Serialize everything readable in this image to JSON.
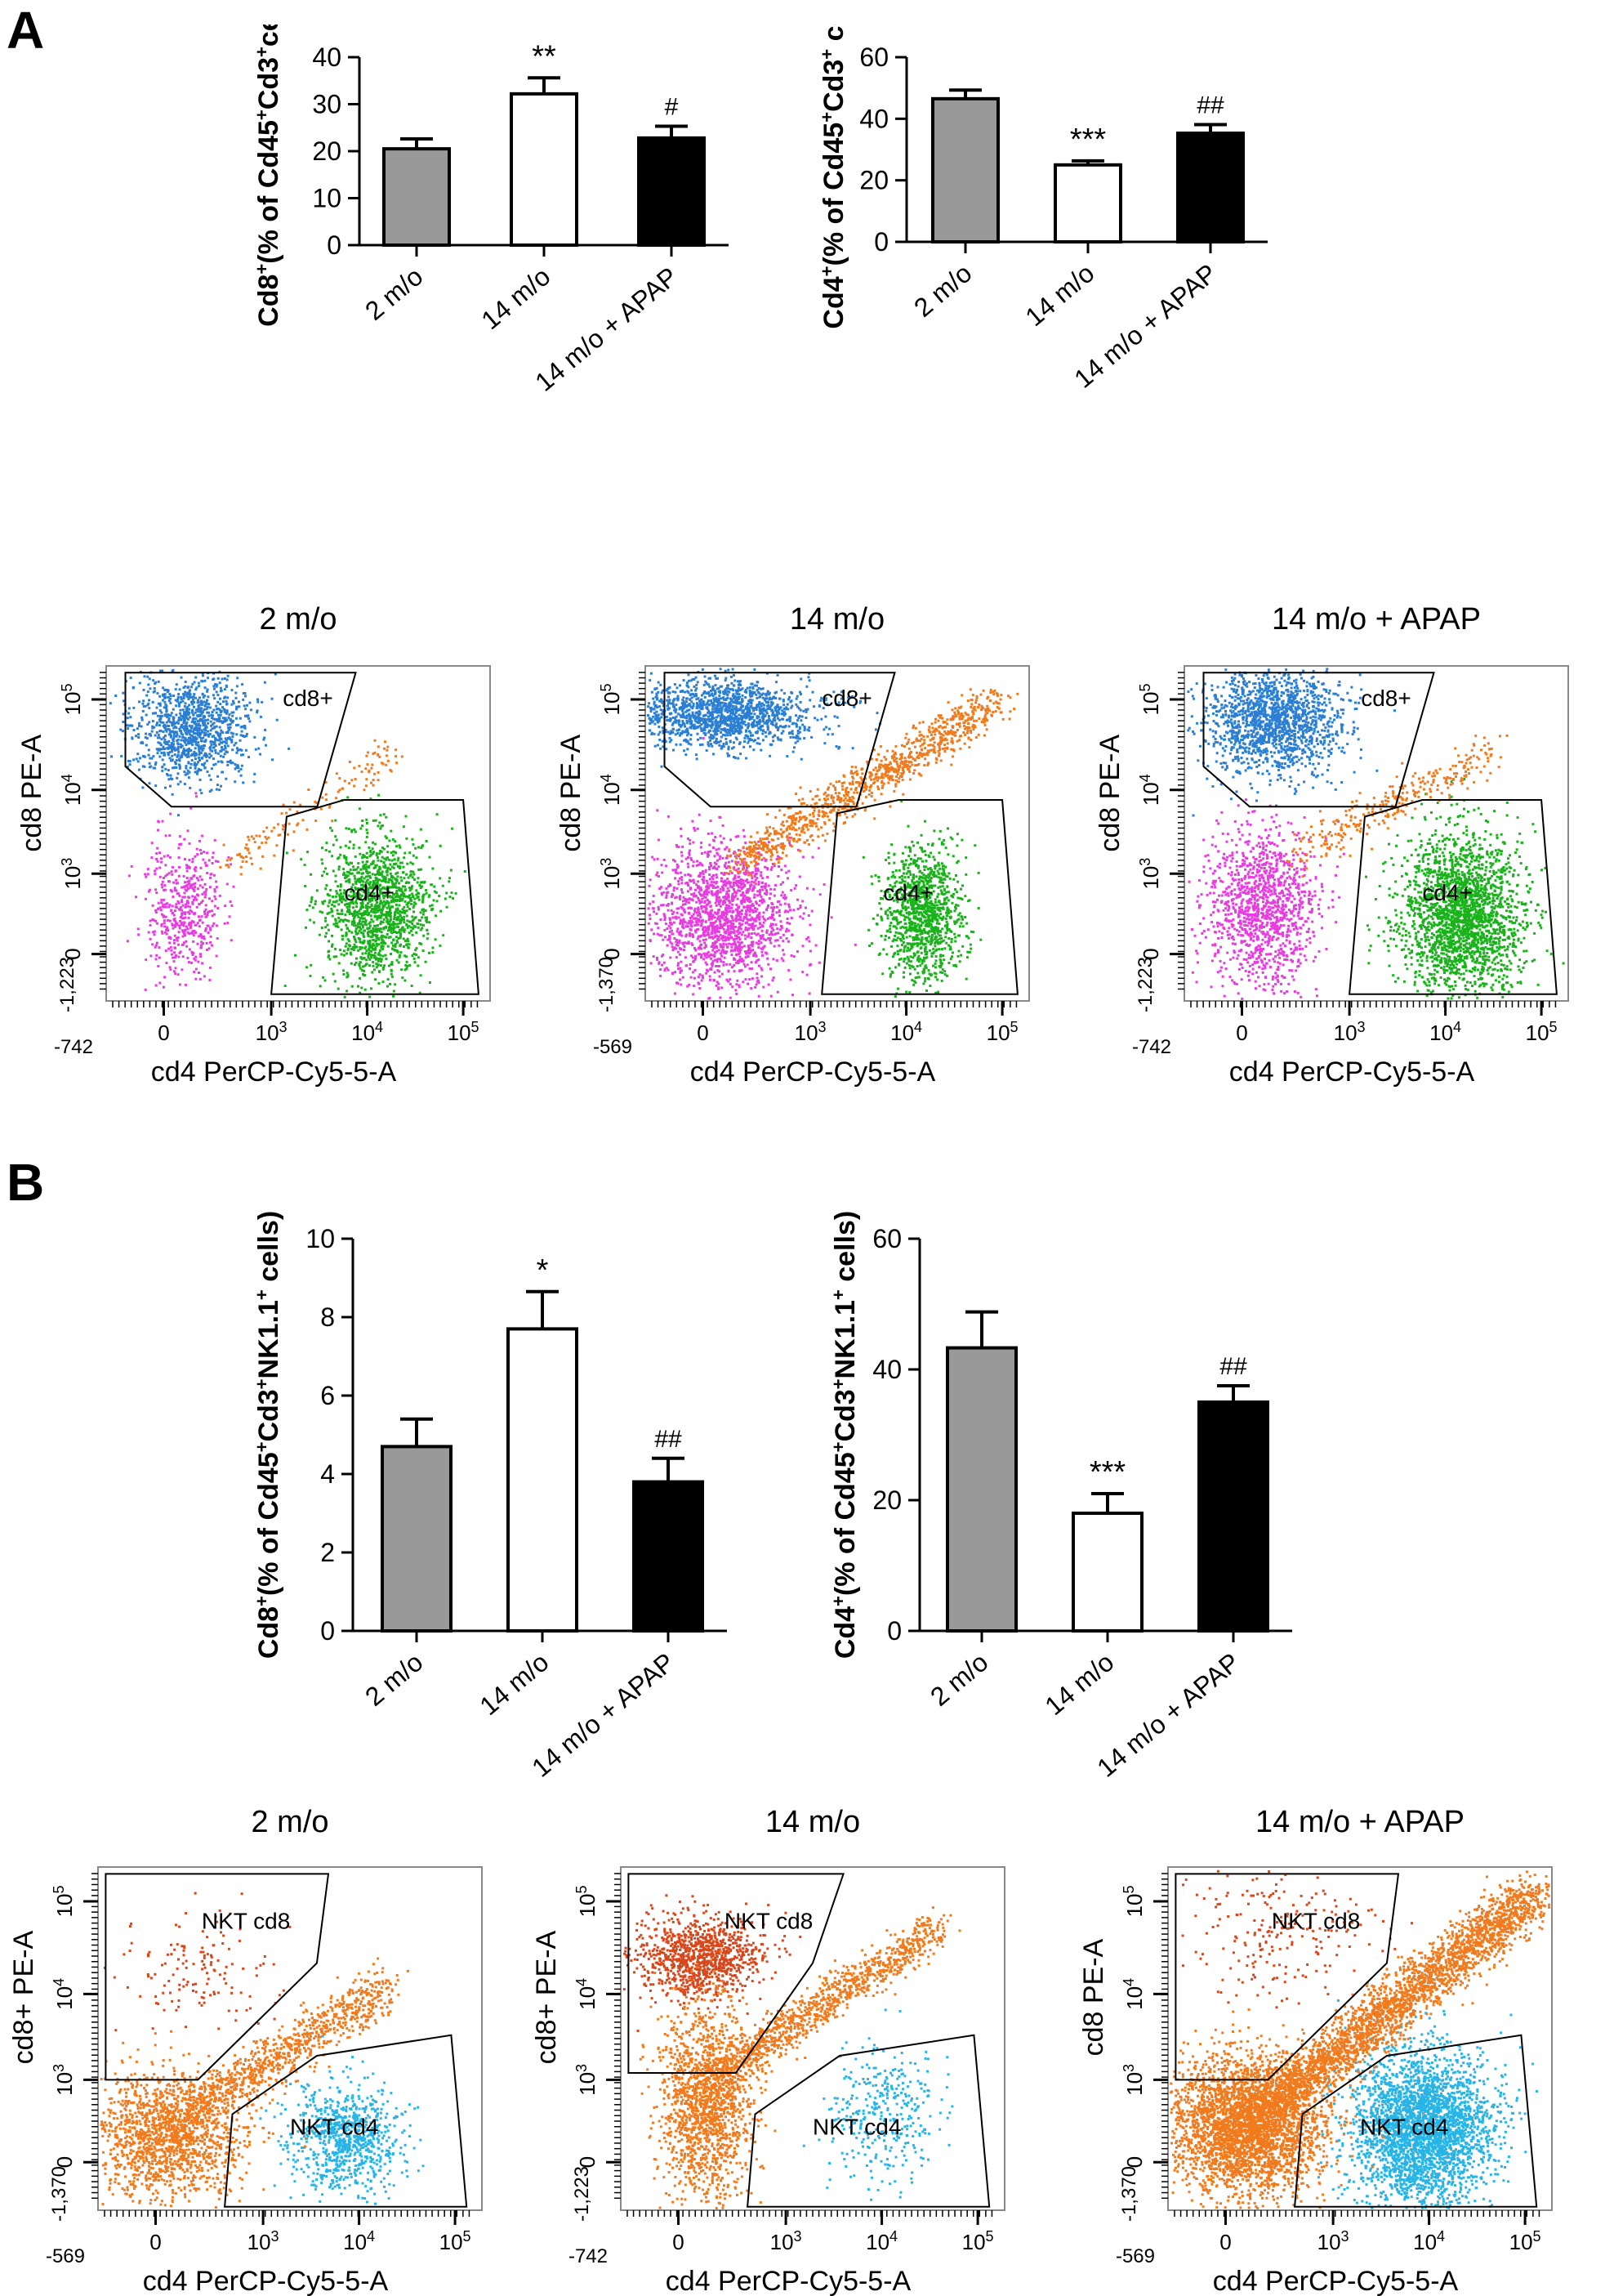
{
  "panels": {
    "a": "A",
    "b": "B"
  },
  "chart_data": [
    {
      "type": "bar",
      "panel": "A",
      "categories": [
        "2 m/o",
        "14 m/o",
        "14 m/o + APAP"
      ],
      "values": [
        20.5,
        32.2,
        22.8
      ],
      "errors": [
        2.1,
        3.4,
        2.5
      ],
      "annotations": [
        "",
        "**",
        "#"
      ],
      "ylabel_main": "Cd8",
      "ylabel_sup": "+",
      "ylabel_rest": "(% of Cd45",
      "ylabel_sup2": "+",
      "ylabel_mid": "Cd3",
      "ylabel_sup3": "+",
      "ylabel_end": "cells)",
      "ylim": [
        0,
        40
      ],
      "yticks": [
        0,
        10,
        20,
        30,
        40
      ],
      "colors": [
        "#999999",
        "#ffffff",
        "#000000"
      ]
    },
    {
      "type": "bar",
      "panel": "A",
      "categories": [
        "2 m/o",
        "14 m/o",
        "14 m/o + APAP"
      ],
      "values": [
        46.5,
        25.0,
        35.3
      ],
      "errors": [
        2.8,
        1.3,
        2.8
      ],
      "annotations": [
        "",
        "***",
        "##"
      ],
      "ylabel_main": "Cd4",
      "ylabel_sup": "+",
      "ylabel_rest": "(% of Cd45",
      "ylabel_sup2": "+",
      "ylabel_mid": "Cd3",
      "ylabel_sup3": "+",
      "ylabel_end": " cells)",
      "ylim": [
        0,
        60
      ],
      "yticks": [
        0,
        20,
        40,
        60
      ],
      "colors": [
        "#999999",
        "#ffffff",
        "#000000"
      ]
    },
    {
      "type": "bar",
      "panel": "B",
      "categories": [
        "2 m/o",
        "14 m/o",
        "14 m/o + APAP"
      ],
      "values": [
        4.7,
        7.7,
        3.8
      ],
      "errors": [
        0.7,
        0.95,
        0.6
      ],
      "annotations": [
        "",
        "*",
        "##"
      ],
      "ylabel_main": "Cd8",
      "ylabel_sup": "+",
      "ylabel_rest": "(% of Cd45",
      "ylabel_sup2": "+",
      "ylabel_mid": "Cd3",
      "ylabel_sup3": "+",
      "ylabel_end": "NK1.1",
      "ylabel_sup4": "+",
      "ylabel_tail": " cells)",
      "ylim": [
        0,
        10
      ],
      "yticks": [
        0,
        2,
        4,
        6,
        8,
        10
      ],
      "colors": [
        "#999999",
        "#ffffff",
        "#000000"
      ]
    },
    {
      "type": "bar",
      "panel": "B",
      "categories": [
        "2 m/o",
        "14 m/o",
        "14 m/o + APAP"
      ],
      "values": [
        43.3,
        18.0,
        35.0
      ],
      "errors": [
        5.5,
        3.0,
        2.5
      ],
      "annotations": [
        "",
        "***",
        "##"
      ],
      "ylabel_main": "Cd4",
      "ylabel_sup": "+",
      "ylabel_rest": "(% of Cd45",
      "ylabel_sup2": "+",
      "ylabel_mid": "Cd3",
      "ylabel_sup3": "+",
      "ylabel_end": "NK1.1",
      "ylabel_sup4": "+",
      "ylabel_tail": " cells)",
      "ylim": [
        0,
        60
      ],
      "yticks": [
        0,
        20,
        40,
        60
      ],
      "colors": [
        "#999999",
        "#ffffff",
        "#000000"
      ]
    },
    {
      "type": "scatter",
      "panel": "A",
      "title": "2 m/o",
      "xlabel": "cd4 PerCP-Cy5-5-A",
      "ylabel": "cd8 PE-A",
      "xmin_label": "-742",
      "ymin_label": "-1,223",
      "gates": [
        "cd8+",
        "cd4+"
      ],
      "populations": {
        "cd8_color": "#2a7fd4",
        "cd4_color": "#19b21a",
        "other_colors": [
          "#e83ce0",
          "#f07a1c"
        ]
      }
    },
    {
      "type": "scatter",
      "panel": "A",
      "title": "14 m/o",
      "xlabel": "cd4 PerCP-Cy5-5-A",
      "ylabel": "cd8 PE-A",
      "xmin_label": "-569",
      "ymin_label": "-1,370",
      "gates": [
        "cd8+",
        "cd4+"
      ],
      "populations": {
        "cd8_color": "#2a7fd4",
        "cd4_color": "#19b21a",
        "other_colors": [
          "#e83ce0",
          "#f07a1c"
        ]
      }
    },
    {
      "type": "scatter",
      "panel": "A",
      "title": "14 m/o + APAP",
      "xlabel": "cd4 PerCP-Cy5-5-A",
      "ylabel": "cd8 PE-A",
      "xmin_label": "-742",
      "ymin_label": "-1,223",
      "gates": [
        "cd8+",
        "cd4+"
      ],
      "populations": {
        "cd8_color": "#2a7fd4",
        "cd4_color": "#19b21a",
        "other_colors": [
          "#e83ce0",
          "#f07a1c"
        ]
      }
    },
    {
      "type": "scatter",
      "panel": "B",
      "title": "2 m/o",
      "xlabel": "cd4 PerCP-Cy5-5-A",
      "ylabel": "cd8+ PE-A",
      "xmin_label": "-569",
      "ymin_label": "-1,370",
      "gates": [
        "NKT cd8",
        "NKT cd4"
      ],
      "populations": {
        "cd8_color": "#d9461a",
        "cd4_color": "#27b4e6",
        "other_colors": [
          "#f07a1c"
        ]
      }
    },
    {
      "type": "scatter",
      "panel": "B",
      "title": "14 m/o",
      "xlabel": "cd4 PerCP-Cy5-5-A",
      "ylabel": "cd8+ PE-A",
      "xmin_label": "-742",
      "ymin_label": "-1,223",
      "gates": [
        "NKT cd8",
        "NKT cd4"
      ],
      "populations": {
        "cd8_color": "#d9461a",
        "cd4_color": "#27b4e6",
        "other_colors": [
          "#f07a1c"
        ]
      }
    },
    {
      "type": "scatter",
      "panel": "B",
      "title": "14 m/o + APAP",
      "xlabel": "cd4 PerCP-Cy5-5-A",
      "ylabel": "cd8 PE-A",
      "xmin_label": "-569",
      "ymin_label": "-1,370",
      "gates": [
        "NKT cd8",
        "NKT cd4"
      ],
      "populations": {
        "cd8_color": "#d9461a",
        "cd4_color": "#27b4e6",
        "other_colors": [
          "#f07a1c"
        ]
      }
    }
  ],
  "flow_axis": {
    "x_ticks": [
      "0",
      "10",
      "10",
      "10"
    ],
    "x_exps": [
      "",
      "3",
      "4",
      "5"
    ],
    "y_ticks": [
      "0",
      "10",
      "10",
      "10"
    ],
    "y_exps": [
      "",
      "3",
      "4",
      "5"
    ]
  }
}
